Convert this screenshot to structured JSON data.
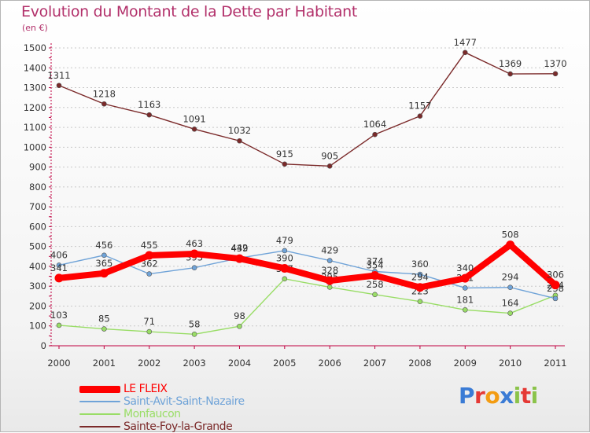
{
  "header": {
    "title": "Evolution du Montant de la Dette par Habitant",
    "subtitle": "(en €)"
  },
  "colors": {
    "title": "#b2306a",
    "axis": "#c00040",
    "text": "#333333",
    "grid": "#c8c8c8"
  },
  "logo": {
    "text": "Proxiti",
    "letter_colors": [
      "#3a7bd5",
      "#e53935",
      "#f39c12",
      "#3a7bd5",
      "#8bc34a",
      "#e53935",
      "#8bc34a"
    ]
  },
  "chart_data": {
    "type": "line",
    "title": "Evolution du Montant de la Dette par Habitant",
    "subtitle": "(en €)",
    "xlabel": "",
    "ylabel": "",
    "x": [
      "2000",
      "2001",
      "2002",
      "2003",
      "2004",
      "2005",
      "2006",
      "2007",
      "2008",
      "2009",
      "2010",
      "2011"
    ],
    "ylim": [
      0,
      1500
    ],
    "yticks": [
      0,
      100,
      200,
      300,
      400,
      500,
      600,
      700,
      800,
      900,
      1000,
      1100,
      1200,
      1300,
      1400,
      1500
    ],
    "grid": "horizontal dashed",
    "legend_position": "bottom-left",
    "series": [
      {
        "name": "Sainte-Foy-la-Grande",
        "color": "#7b2a2a",
        "stroke": "thin",
        "values": [
          1311,
          1218,
          1163,
          1091,
          1032,
          915,
          905,
          1064,
          1157,
          1477,
          1369,
          1370
        ]
      },
      {
        "name": "Monfaucon",
        "color": "#99dd66",
        "stroke": "thin",
        "values": [
          103,
          85,
          71,
          58,
          98,
          337,
          295,
          258,
          223,
          181,
          164,
          254
        ]
      },
      {
        "name": "Saint-Avit-Saint-Nazaire",
        "color": "#6fa3d8",
        "stroke": "thin",
        "values": [
          406,
          456,
          362,
          393,
          442,
          479,
          429,
          374,
          360,
          291,
          294,
          238
        ]
      },
      {
        "name": "LE FLEIX",
        "color": "#ff0000",
        "stroke": "thick",
        "values": [
          341,
          365,
          455,
          463,
          439,
          390,
          328,
          354,
          294,
          340,
          508,
          306
        ]
      }
    ]
  },
  "legend": {
    "items": [
      {
        "label": "LE FLEIX",
        "color": "#ff0000",
        "thickness": 9
      },
      {
        "label": "Saint-Avit-Saint-Nazaire",
        "color": "#6fa3d8",
        "thickness": 2
      },
      {
        "label": "Monfaucon",
        "color": "#99dd66",
        "thickness": 2
      },
      {
        "label": "Sainte-Foy-la-Grande",
        "color": "#7b2a2a",
        "thickness": 2
      }
    ]
  }
}
